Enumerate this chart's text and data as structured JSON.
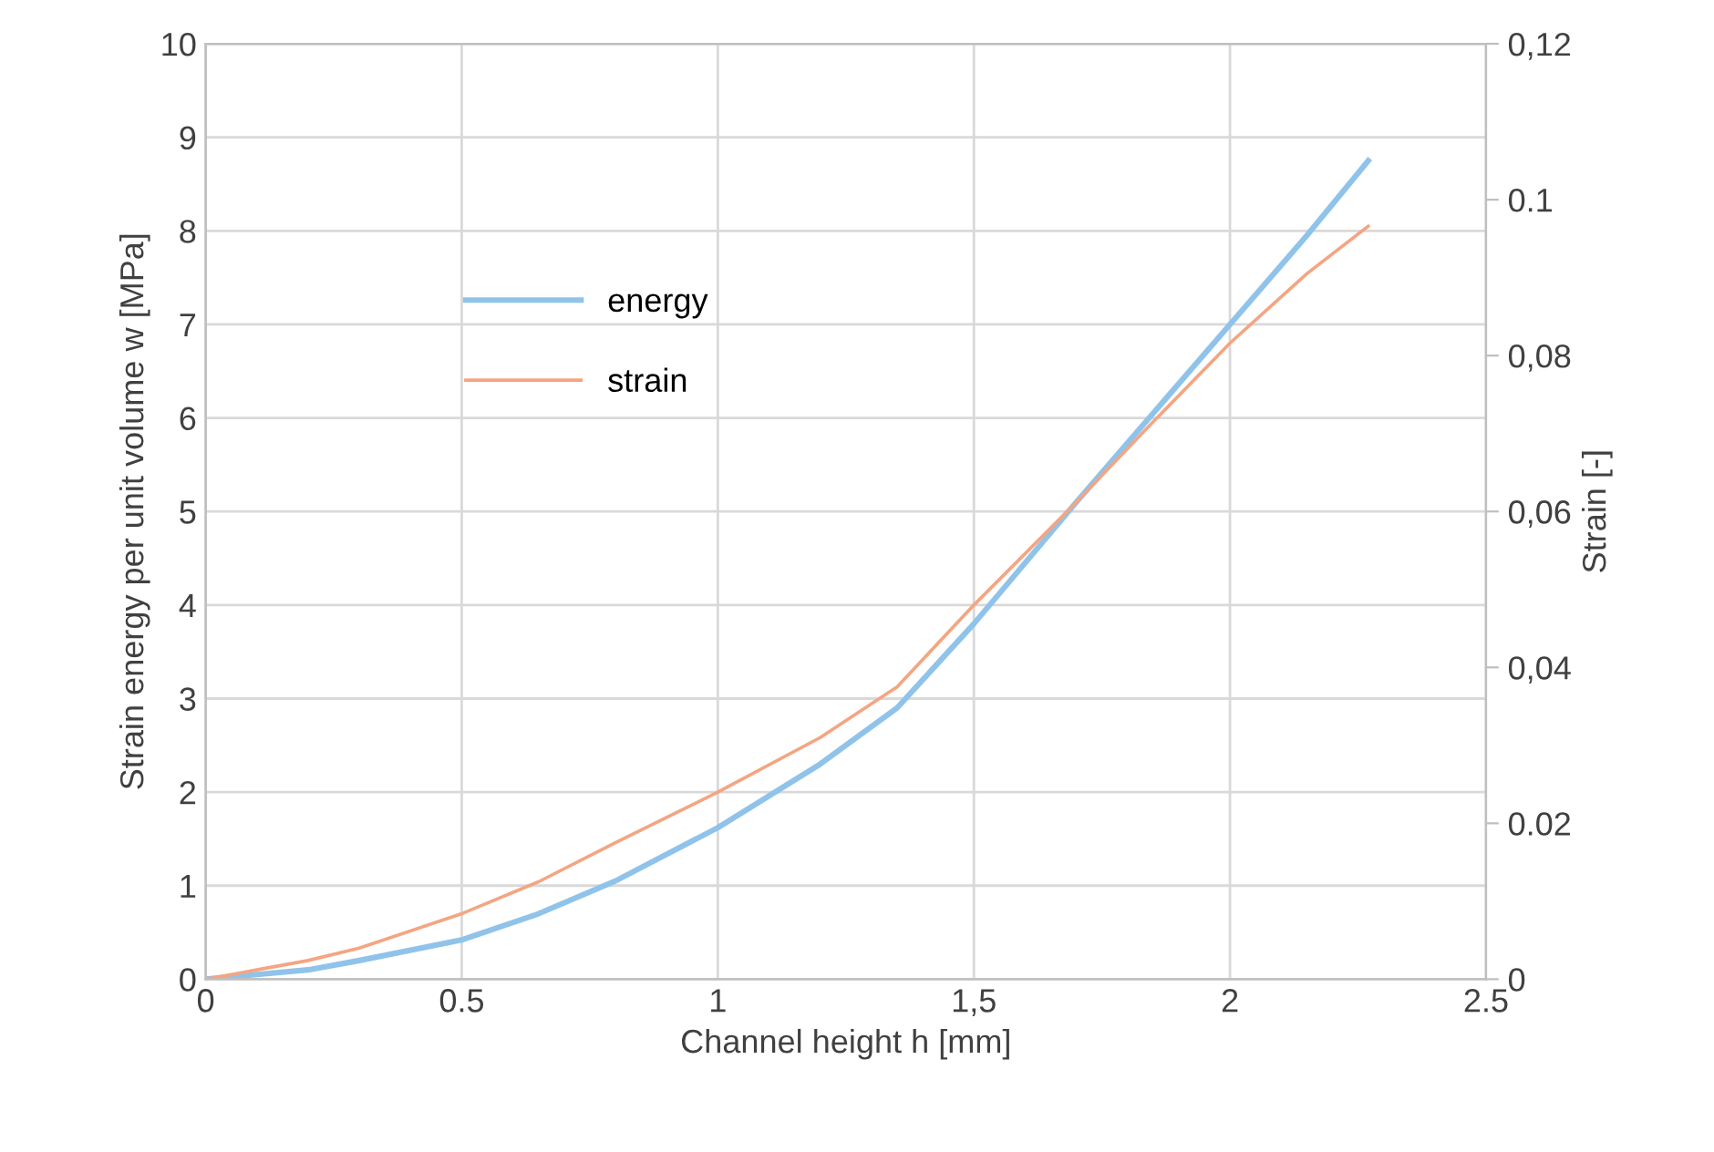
{
  "chart_data": {
    "type": "line",
    "xlabel": "Channel height h [mm]",
    "ylabel": "Strain energy per unit volume w [MPa]",
    "y2label": "Strain [-]",
    "x": [
      0,
      0.1,
      0.2,
      0.3,
      0.5,
      0.65,
      0.8,
      1.0,
      1.2,
      1.35,
      1.5,
      1.7,
      1.85,
      2.0,
      2.15,
      2.27
    ],
    "series": [
      {
        "name": "energy",
        "color": "#8fc3ea",
        "values": [
          0,
          0.05,
          0.1,
          0.2,
          0.42,
          0.7,
          1.05,
          1.62,
          2.3,
          2.9,
          3.8,
          5.1,
          6.05,
          7.0,
          7.95,
          8.75
        ]
      },
      {
        "name": "strain",
        "color": "#f4a582",
        "axis": "y2",
        "values": [
          0,
          0.0012,
          0.0024,
          0.004,
          0.0084,
          0.0125,
          0.0175,
          0.024,
          0.031,
          0.0375,
          0.048,
          0.0612,
          0.0715,
          0.0816,
          0.0905,
          0.0966
        ]
      }
    ],
    "xlim": [
      0,
      2.5
    ],
    "xticks": [
      0,
      0.5,
      1,
      {
        "value": 1.5,
        "label": "1,5"
      },
      2,
      2.5
    ],
    "ylim": [
      0,
      10
    ],
    "yticks": [
      0,
      1,
      2,
      3,
      4,
      5,
      6,
      7,
      8,
      9,
      10
    ],
    "y2lim": [
      0,
      0.12
    ],
    "y2ticks": [
      0,
      0.02,
      {
        "value": 0.04,
        "label": "0,04"
      },
      {
        "value": 0.06,
        "label": "0,06"
      },
      {
        "value": 0.08,
        "label": "0,08"
      },
      0.1,
      {
        "value": 0.12,
        "label": "0,12"
      }
    ],
    "grid": true,
    "legend": "left",
    "marker": "none",
    "line_style": "solid"
  }
}
